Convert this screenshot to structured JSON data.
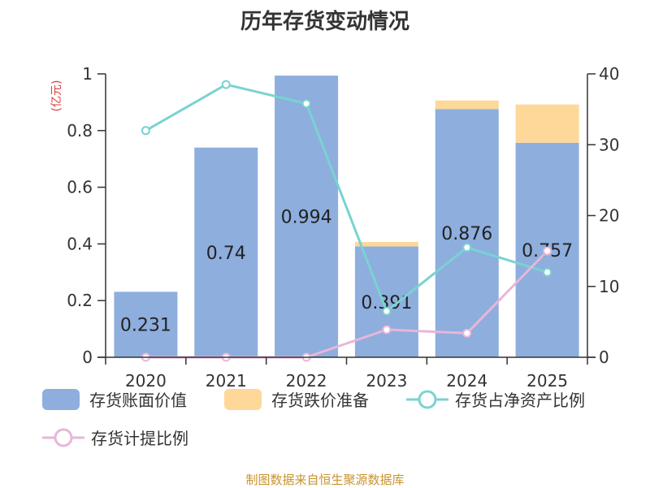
{
  "title": "历年存货变动情况",
  "source": "制图数据来自恒生聚源数据库",
  "left_unit": "(亿元)",
  "colors": {
    "book_value": "#8eaede",
    "impairment": "#fdd898",
    "ratio_net_assets": "#79d3d1",
    "provision_ratio": "#e8b6d8",
    "unit_text": "#e23c3c"
  },
  "legend": {
    "book_value": "存货账面价值",
    "impairment": "存货跌价准备",
    "ratio_net_assets": "存货占净资产比例",
    "provision_ratio": "存货计提比例"
  },
  "chart_data": {
    "type": "bar",
    "title": "历年存货变动情况",
    "categories": [
      "2020",
      "2021",
      "2022",
      "2023",
      "2024",
      "2025"
    ],
    "y_left": {
      "ylim": [
        0,
        1
      ],
      "ticks": [
        "0",
        "0.2",
        "0.4",
        "0.6",
        "0.8",
        "1"
      ]
    },
    "y_right": {
      "ylim": [
        0,
        40
      ],
      "ticks": [
        "0",
        "10",
        "20",
        "30",
        "40"
      ]
    },
    "series": [
      {
        "name": "存货账面价值",
        "kind": "bar",
        "axis": "left",
        "stack": "inv",
        "values": [
          0.231,
          0.74,
          0.994,
          0.391,
          0.876,
          0.757
        ],
        "labels": [
          "0.231",
          "0.74",
          "0.994",
          "0.391",
          "0.876",
          "0.757"
        ]
      },
      {
        "name": "存货跌价准备",
        "kind": "bar",
        "axis": "left",
        "stack": "inv",
        "values": [
          0,
          0,
          0,
          0.016,
          0.03,
          0.135
        ]
      },
      {
        "name": "存货占净资产比例",
        "kind": "line",
        "axis": "right",
        "values": [
          32,
          38.5,
          35.8,
          6.5,
          15.5,
          12
        ]
      },
      {
        "name": "存货计提比例",
        "kind": "line",
        "axis": "right",
        "values": [
          0,
          0,
          0,
          3.9,
          3.4,
          15
        ]
      }
    ],
    "grid": false,
    "legend_position": "bottom"
  }
}
